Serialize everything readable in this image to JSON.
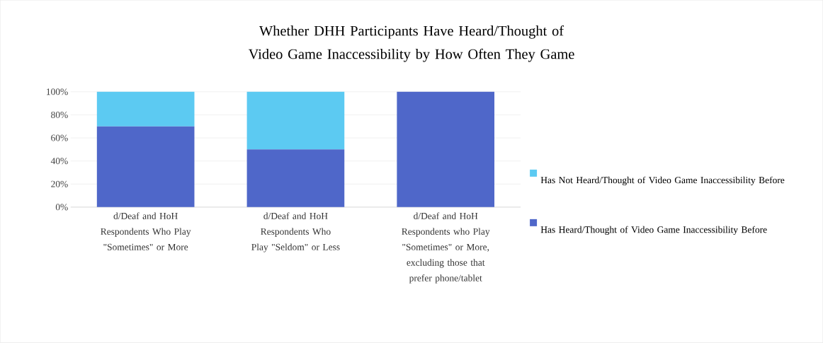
{
  "chart_data": {
    "type": "bar",
    "stacked": true,
    "title": "Whether DHH Participants Have Heard/Thought of Video Game Inaccessibility by How Often They Game",
    "categories": [
      "d/Deaf and HoH Respondents Who Play \"Sometimes\" or More",
      "d/Deaf and HoH Respondents Who Play \"Seldom\" or Less",
      "d/Deaf and HoH Respondents who Play \"Sometimes\" or More, excluding those that prefer phone/tablet"
    ],
    "series": [
      {
        "name": "Has Heard/Thought of Video Game Inaccessibility Before",
        "color": "#4f67c9",
        "values": [
          70,
          50,
          100
        ]
      },
      {
        "name": "Has Not Heard/Thought of Video Game Inaccessibility Before",
        "color": "#5ccaf2",
        "values": [
          30,
          50,
          0
        ]
      }
    ],
    "ylim": [
      0,
      100
    ],
    "yticks": [
      {
        "value": 0,
        "label": "0%"
      },
      {
        "value": 20,
        "label": "20%"
      },
      {
        "value": 40,
        "label": "40%"
      },
      {
        "value": 60,
        "label": "60%"
      },
      {
        "value": 80,
        "label": "80%"
      },
      {
        "value": 100,
        "label": "100%"
      }
    ],
    "grid": "y",
    "legend": "right"
  }
}
